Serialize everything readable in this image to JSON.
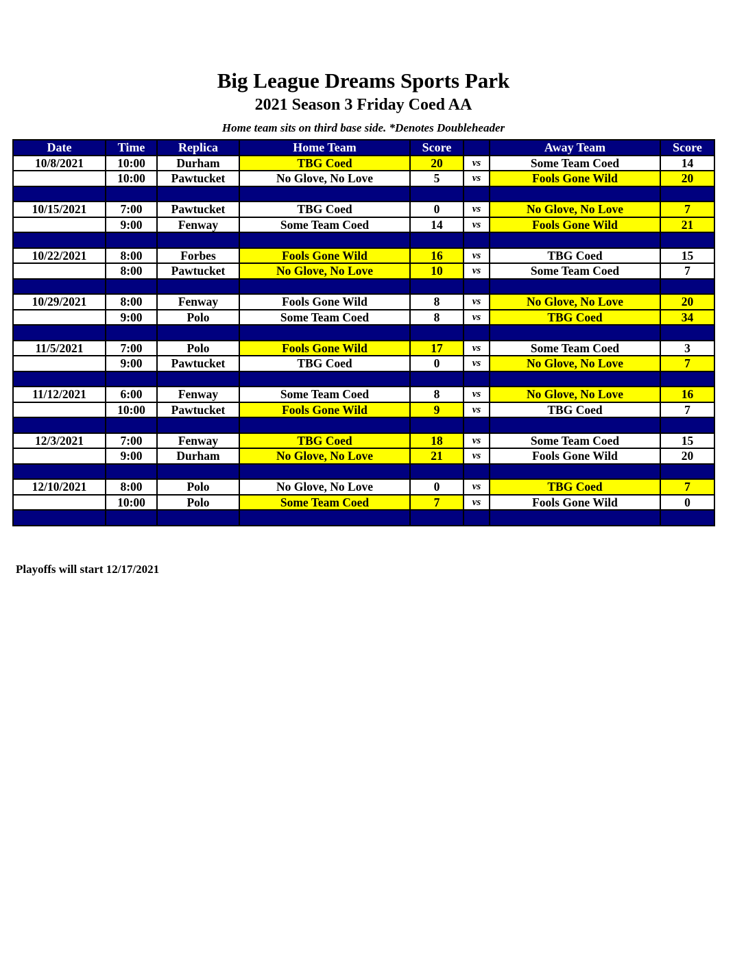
{
  "title": "Big League Dreams Sports Park",
  "subtitle": "2021 Season 3 Friday Coed AA",
  "note": "Home team sits on third base side.  *Denotes Doubleheader",
  "columns": [
    "Date",
    "Time",
    "Replica",
    "Home Team",
    "Score",
    "",
    "Away Team",
    "Score"
  ],
  "vs_label": "vs",
  "colors": {
    "header_bg": "#00007f",
    "winner_bg": "#ffff00"
  },
  "weeks": [
    {
      "date": "10/8/2021",
      "games": [
        {
          "time": "10:00",
          "field": "Durham",
          "home": "TBG Coed",
          "home_score": 20,
          "away": "Some Team Coed",
          "away_score": 14
        },
        {
          "time": "10:00",
          "field": "Pawtucket",
          "home": "No Glove, No Love",
          "home_score": 5,
          "away": "Fools Gone Wild",
          "away_score": 20
        }
      ]
    },
    {
      "date": "10/15/2021",
      "games": [
        {
          "time": "7:00",
          "field": "Pawtucket",
          "home": "TBG Coed",
          "home_score": 0,
          "away": "No Glove, No Love",
          "away_score": 7
        },
        {
          "time": "9:00",
          "field": "Fenway",
          "home": "Some Team Coed",
          "home_score": 14,
          "away": "Fools Gone Wild",
          "away_score": 21
        }
      ]
    },
    {
      "date": "10/22/2021",
      "games": [
        {
          "time": "8:00",
          "field": "Forbes",
          "home": "Fools Gone Wild",
          "home_score": 16,
          "away": "TBG Coed",
          "away_score": 15
        },
        {
          "time": "8:00",
          "field": "Pawtucket",
          "home": "No Glove, No Love",
          "home_score": 10,
          "away": "Some Team Coed",
          "away_score": 7
        }
      ]
    },
    {
      "date": "10/29/2021",
      "games": [
        {
          "time": "8:00",
          "field": "Fenway",
          "home": "Fools Gone Wild",
          "home_score": 8,
          "away": "No Glove, No Love",
          "away_score": 20
        },
        {
          "time": "9:00",
          "field": "Polo",
          "home": "Some Team Coed",
          "home_score": 8,
          "away": "TBG Coed",
          "away_score": 34
        }
      ]
    },
    {
      "date": "11/5/2021",
      "games": [
        {
          "time": "7:00",
          "field": "Polo",
          "home": "Fools Gone Wild",
          "home_score": 17,
          "away": "Some Team Coed",
          "away_score": 3
        },
        {
          "time": "9:00",
          "field": "Pawtucket",
          "home": "TBG Coed",
          "home_score": 0,
          "away": "No Glove, No Love",
          "away_score": 7
        }
      ]
    },
    {
      "date": "11/12/2021",
      "games": [
        {
          "time": "6:00",
          "field": "Fenway",
          "home": "Some Team Coed",
          "home_score": 8,
          "away": "No Glove, No Love",
          "away_score": 16
        },
        {
          "time": "10:00",
          "field": "Pawtucket",
          "home": "Fools Gone Wild",
          "home_score": 9,
          "away": "TBG Coed",
          "away_score": 7
        }
      ]
    },
    {
      "date": "12/3/2021",
      "games": [
        {
          "time": "7:00",
          "field": "Fenway",
          "home": "TBG Coed",
          "home_score": 18,
          "away": "Some Team Coed",
          "away_score": 15
        },
        {
          "time": "9:00",
          "field": "Durham",
          "home": "No Glove, No Love",
          "home_score": 21,
          "away": "Fools Gone Wild",
          "away_score": 20
        }
      ]
    },
    {
      "date": "12/10/2021",
      "games": [
        {
          "time": "8:00",
          "field": "Polo",
          "home": "No Glove, No Love",
          "home_score": 0,
          "away": "TBG Coed",
          "away_score": 7
        },
        {
          "time": "10:00",
          "field": "Polo",
          "home": "Some Team Coed",
          "home_score": 7,
          "away": "Fools Gone Wild",
          "away_score": 0
        }
      ]
    }
  ],
  "footer": "Playoffs will start 12/17/2021"
}
